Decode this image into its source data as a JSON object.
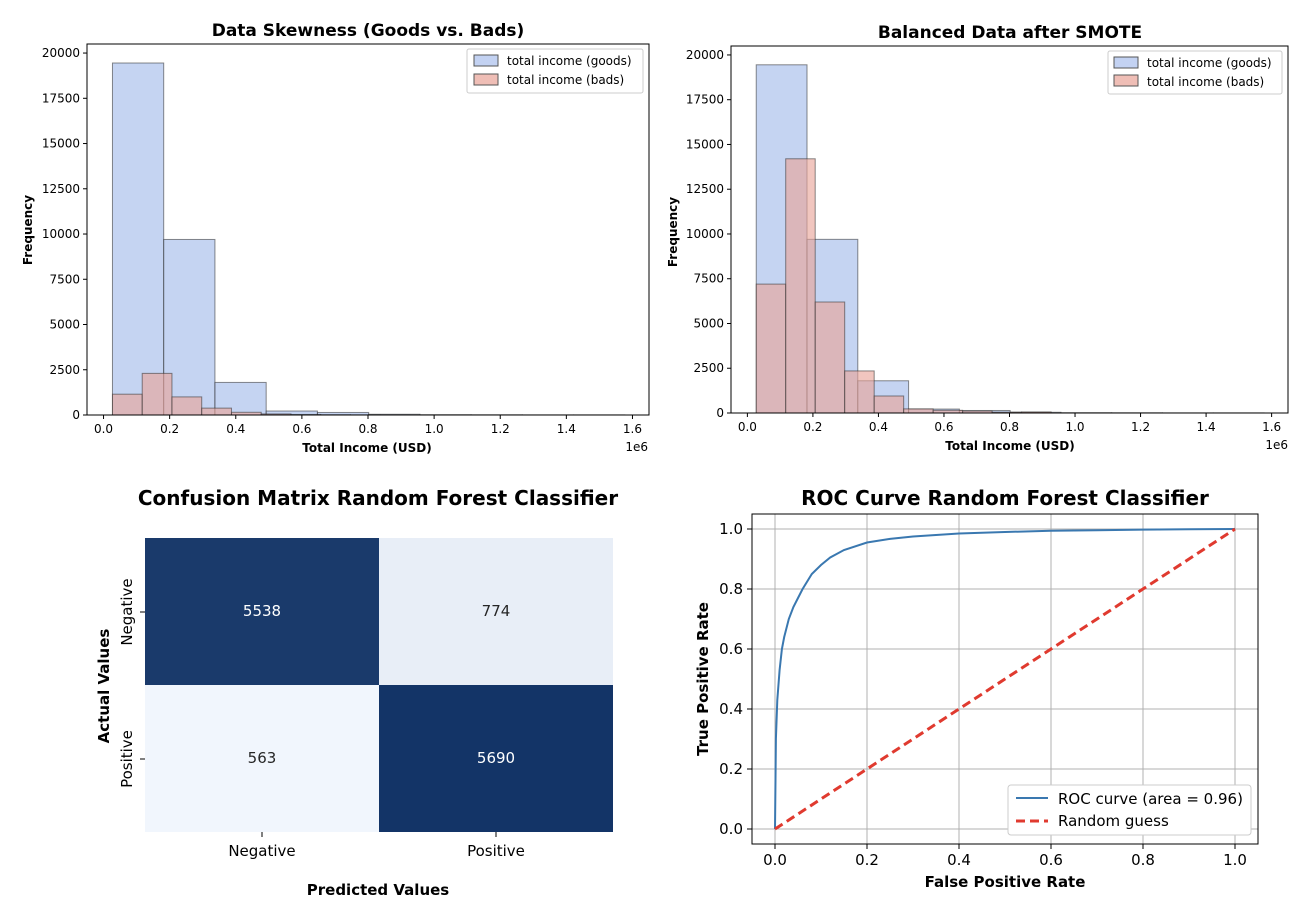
{
  "chart_data": [
    {
      "type": "histogram",
      "title": "Data Skewness (Goods vs. Bads)",
      "xlabel": "Total Income (USD)",
      "ylabel": "Frequency",
      "x_offset_label": "1e6",
      "xlim": [
        -0.05,
        1.65
      ],
      "ylim": [
        0,
        20500
      ],
      "xticks": [
        0.0,
        0.2,
        0.4,
        0.6,
        0.8,
        1.0,
        1.2,
        1.4,
        1.6
      ],
      "xtick_labels": [
        "0.0",
        "0.2",
        "0.4",
        "0.6",
        "0.8",
        "1.0",
        "1.2",
        "1.4",
        "1.6"
      ],
      "yticks": [
        0,
        2500,
        5000,
        7500,
        10000,
        12500,
        15000,
        17500,
        20000
      ],
      "ytick_labels": [
        "0",
        "2500",
        "5000",
        "7500",
        "10000",
        "12500",
        "15000",
        "17500",
        "20000"
      ],
      "legend_position": "top-right",
      "series": [
        {
          "name": "total income (goods)",
          "color": "#a9bfec",
          "bin_edges": [
            0.027,
            0.182,
            0.337,
            0.492,
            0.647,
            0.802,
            0.957,
            1.112,
            1.267,
            1.422,
            1.577
          ],
          "counts": [
            19450,
            9700,
            1800,
            220,
            140,
            40,
            15,
            10,
            5,
            5
          ]
        },
        {
          "name": "total income (bads)",
          "color": "#e8a397",
          "bin_edges": [
            0.027,
            0.117,
            0.207,
            0.297,
            0.387,
            0.477,
            0.567,
            0.657,
            0.747,
            0.837,
            0.927
          ],
          "counts": [
            1150,
            2300,
            1000,
            380,
            150,
            60,
            30,
            15,
            8,
            4
          ]
        }
      ]
    },
    {
      "type": "histogram",
      "title": "Balanced Data after SMOTE",
      "xlabel": "Total Income (USD)",
      "ylabel": "Frequency",
      "x_offset_label": "1e6",
      "xlim": [
        -0.05,
        1.65
      ],
      "ylim": [
        0,
        20500
      ],
      "xticks": [
        0.0,
        0.2,
        0.4,
        0.6,
        0.8,
        1.0,
        1.2,
        1.4,
        1.6
      ],
      "xtick_labels": [
        "0.0",
        "0.2",
        "0.4",
        "0.6",
        "0.8",
        "1.0",
        "1.2",
        "1.4",
        "1.6"
      ],
      "yticks": [
        0,
        2500,
        5000,
        7500,
        10000,
        12500,
        15000,
        17500,
        20000
      ],
      "ytick_labels": [
        "0",
        "2500",
        "5000",
        "7500",
        "10000",
        "12500",
        "15000",
        "17500",
        "20000"
      ],
      "legend_position": "top-right",
      "series": [
        {
          "name": "total income (goods)",
          "color": "#a9bfec",
          "bin_edges": [
            0.027,
            0.182,
            0.337,
            0.492,
            0.647,
            0.802,
            0.957,
            1.112,
            1.267,
            1.422,
            1.577
          ],
          "counts": [
            19450,
            9700,
            1800,
            220,
            140,
            40,
            15,
            10,
            5,
            5
          ]
        },
        {
          "name": "total income (bads)",
          "color": "#e8a397",
          "bin_edges": [
            0.027,
            0.117,
            0.207,
            0.297,
            0.387,
            0.477,
            0.567,
            0.657,
            0.747,
            0.837,
            0.927
          ],
          "counts": [
            7200,
            14200,
            6200,
            2350,
            950,
            230,
            150,
            110,
            50,
            60
          ]
        }
      ]
    },
    {
      "type": "heatmap",
      "title": "Confusion Matrix Random Forest Classifier",
      "xlabel": "Predicted Values",
      "ylabel": "Actual Values",
      "x_categories": [
        "Negative",
        "Positive"
      ],
      "y_categories": [
        "Negative",
        "Positive"
      ],
      "values": [
        [
          5538,
          774
        ],
        [
          563,
          5690
        ]
      ],
      "colormap": "Blues",
      "colors": {
        "high": "#133467",
        "low": "#f1f6fd",
        "text_dark_bg": "#ffffff",
        "text_light_bg": "#262626"
      }
    },
    {
      "type": "line",
      "title": "ROC Curve Random Forest Classifier",
      "xlabel": "False Positive Rate",
      "ylabel": "True Positive Rate",
      "xlim": [
        -0.05,
        1.05
      ],
      "ylim": [
        -0.05,
        1.05
      ],
      "xticks": [
        0.0,
        0.2,
        0.4,
        0.6,
        0.8,
        1.0
      ],
      "xtick_labels": [
        "0.0",
        "0.2",
        "0.4",
        "0.6",
        "0.8",
        "1.0"
      ],
      "yticks": [
        0.0,
        0.2,
        0.4,
        0.6,
        0.8,
        1.0
      ],
      "ytick_labels": [
        "0.0",
        "0.2",
        "0.4",
        "0.6",
        "0.8",
        "1.0"
      ],
      "grid": true,
      "legend_position": "bottom-right",
      "series": [
        {
          "name": "ROC curve (area = 0.96)",
          "color": "#3a78b0",
          "style": "solid",
          "x": [
            0,
            0.002,
            0.005,
            0.01,
            0.015,
            0.02,
            0.03,
            0.04,
            0.05,
            0.06,
            0.08,
            0.1,
            0.12,
            0.15,
            0.2,
            0.25,
            0.3,
            0.4,
            0.5,
            0.6,
            0.7,
            0.8,
            0.9,
            1.0
          ],
          "y": [
            0,
            0.3,
            0.43,
            0.53,
            0.6,
            0.64,
            0.7,
            0.74,
            0.77,
            0.8,
            0.85,
            0.88,
            0.905,
            0.93,
            0.955,
            0.967,
            0.975,
            0.985,
            0.99,
            0.994,
            0.996,
            0.998,
            0.999,
            1.0
          ]
        },
        {
          "name": "Random guess",
          "color": "#e03a2f",
          "style": "dashed",
          "x": [
            0,
            1
          ],
          "y": [
            0,
            1
          ]
        }
      ]
    }
  ]
}
